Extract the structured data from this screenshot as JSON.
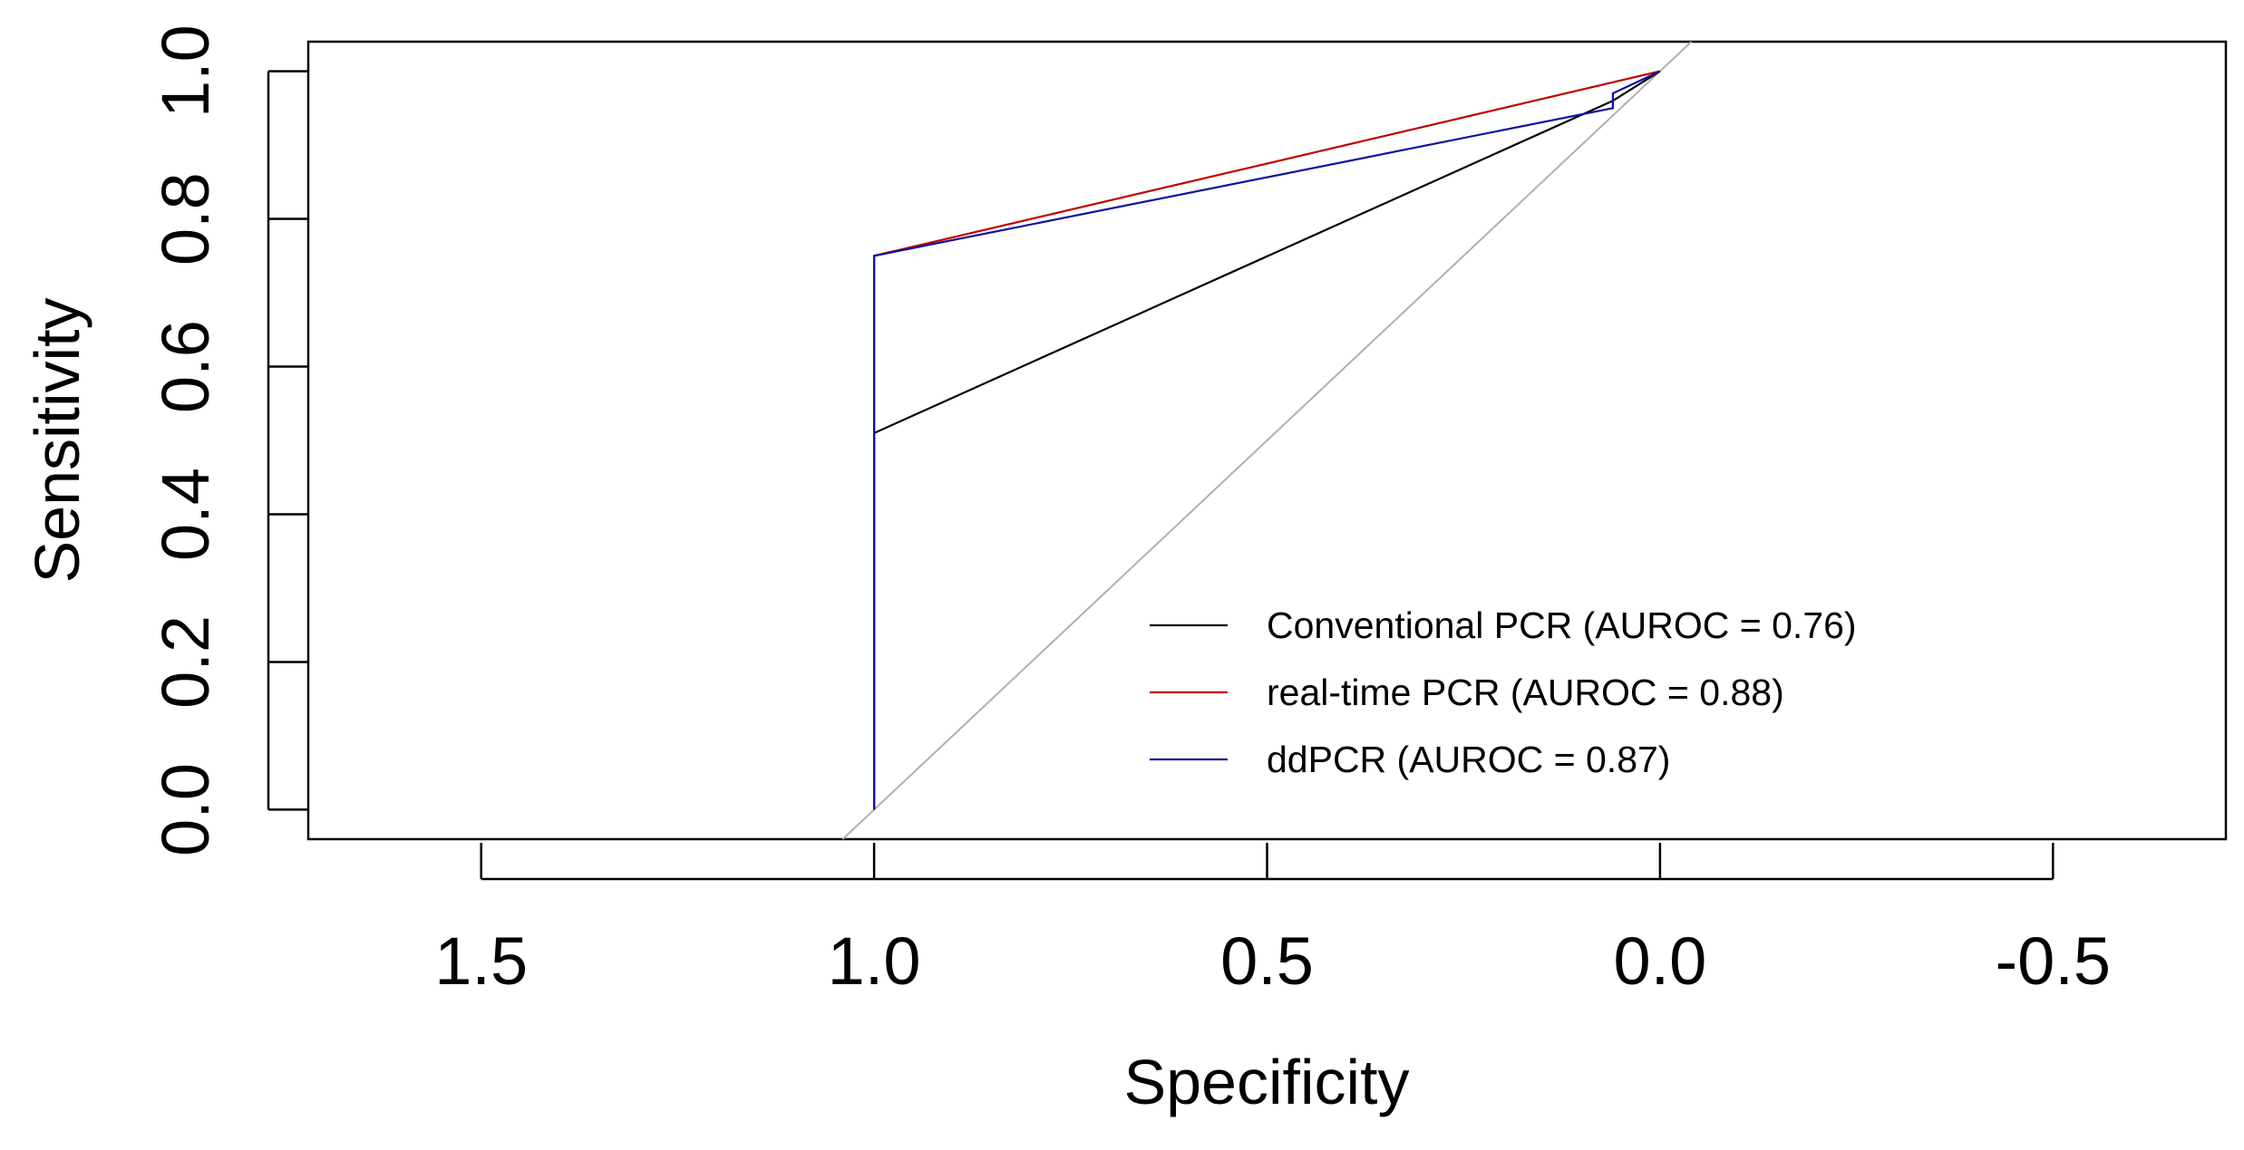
{
  "chart_data": {
    "type": "line",
    "title": "",
    "xlabel": "Specificity",
    "ylabel": "Sensitivity",
    "xlim": [
      1.72,
      -0.72
    ],
    "ylim": [
      -0.04,
      1.04
    ],
    "x_reversed": true,
    "xticks": [
      1.5,
      1.0,
      0.5,
      0.0,
      -0.5
    ],
    "xtick_labels": [
      "1.5",
      "1.0",
      "0.5",
      "0.0",
      "-0.5"
    ],
    "yticks": [
      0.0,
      0.2,
      0.4,
      0.6,
      0.8,
      1.0
    ],
    "ytick_labels": [
      "0.0",
      "0.2",
      "0.4",
      "0.6",
      "0.8",
      "1.0"
    ],
    "grid": false,
    "legend_position": "bottom-right",
    "reference_line": {
      "x": [
        1.0,
        0.0
      ],
      "y": [
        0.0,
        1.0
      ],
      "color": "#b0b0b0"
    },
    "series": [
      {
        "name": "Conventional PCR (AUROC = 0.76)",
        "color": "#000000",
        "x": [
          1.0,
          1.0,
          0.06,
          0.0
        ],
        "y": [
          0.0,
          0.51,
          0.96,
          1.0
        ]
      },
      {
        "name": "real-time PCR (AUROC = 0.88)",
        "color": "#c00000",
        "x": [
          1.0,
          1.0,
          0.0
        ],
        "y": [
          0.0,
          0.75,
          1.0
        ]
      },
      {
        "name": "ddPCR (AUROC = 0.87)",
        "color": "#1010a0",
        "x": [
          1.0,
          1.0,
          0.06,
          0.06,
          0.0
        ],
        "y": [
          0.0,
          0.75,
          0.95,
          0.97,
          1.0
        ]
      }
    ]
  }
}
